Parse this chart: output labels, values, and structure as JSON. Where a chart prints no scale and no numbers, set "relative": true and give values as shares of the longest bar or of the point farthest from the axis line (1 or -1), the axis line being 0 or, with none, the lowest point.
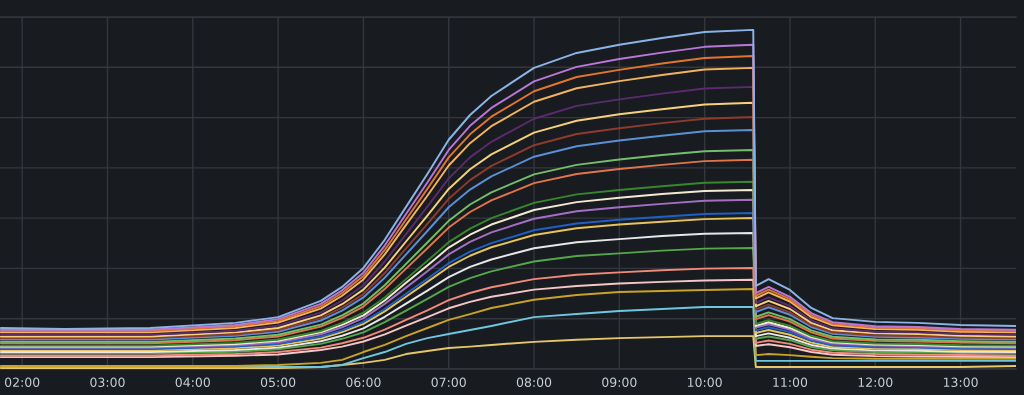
{
  "chart_data": {
    "type": "line",
    "relative": true,
    "grid": true,
    "x": [
      1.75,
      2.5,
      3.5,
      4.5,
      5,
      5.5,
      5.75,
      6,
      6.25,
      6.5,
      6.75,
      7,
      7.25,
      7.5,
      8,
      8.5,
      9,
      9.5,
      10,
      10.57,
      10.6,
      10.75,
      11,
      11.25,
      11.5,
      12,
      12.5,
      13,
      13.65
    ],
    "xlim": [
      1.74,
      13.65
    ],
    "xticks": [
      {
        "value": 2,
        "label": "02:00"
      },
      {
        "value": 3,
        "label": "03:00"
      },
      {
        "value": 4,
        "label": "04:00"
      },
      {
        "value": 5,
        "label": "05:00"
      },
      {
        "value": 6,
        "label": "06:00"
      },
      {
        "value": 7,
        "label": "07:00"
      },
      {
        "value": 8,
        "label": "08:00"
      },
      {
        "value": 9,
        "label": "09:00"
      },
      {
        "value": 10,
        "label": "10:00"
      },
      {
        "value": 11,
        "label": "11:00"
      },
      {
        "value": 12,
        "label": "12:00"
      },
      {
        "value": 13,
        "label": "13:00"
      }
    ],
    "series": [
      {
        "color": "#8ab4e8",
        "values": [
          0.121,
          0.118,
          0.121,
          0.136,
          0.153,
          0.201,
          0.242,
          0.298,
          0.381,
          0.478,
          0.575,
          0.676,
          0.749,
          0.805,
          0.888,
          0.932,
          0.956,
          0.976,
          0.994,
          1.0,
          0.245,
          0.265,
          0.233,
          0.18,
          0.15,
          0.139,
          0.136,
          0.13,
          0.127
        ]
      },
      {
        "color": "#b877d9",
        "values": [
          0.116,
          0.116,
          0.116,
          0.13,
          0.147,
          0.192,
          0.232,
          0.284,
          0.364,
          0.457,
          0.55,
          0.646,
          0.717,
          0.77,
          0.848,
          0.891,
          0.914,
          0.933,
          0.95,
          0.956,
          0.224,
          0.242,
          0.213,
          0.165,
          0.138,
          0.126,
          0.124,
          0.118,
          0.116
        ]
      },
      {
        "color": "#e0752d",
        "values": [
          0.112,
          0.112,
          0.112,
          0.126,
          0.142,
          0.185,
          0.224,
          0.274,
          0.351,
          0.441,
          0.531,
          0.624,
          0.692,
          0.744,
          0.819,
          0.861,
          0.882,
          0.901,
          0.917,
          0.923,
          0.216,
          0.234,
          0.206,
          0.159,
          0.133,
          0.122,
          0.12,
          0.114,
          0.112
        ]
      },
      {
        "color": "#f2b35e",
        "values": [
          0.108,
          0.108,
          0.108,
          0.121,
          0.137,
          0.178,
          0.216,
          0.264,
          0.338,
          0.425,
          0.511,
          0.6,
          0.666,
          0.716,
          0.788,
          0.828,
          0.849,
          0.867,
          0.883,
          0.888,
          0.208,
          0.226,
          0.199,
          0.153,
          0.129,
          0.118,
          0.116,
          0.11,
          0.108
        ]
      },
      {
        "color": "#5c2a6e",
        "values": [
          0.101,
          0.101,
          0.101,
          0.113,
          0.128,
          0.167,
          0.202,
          0.247,
          0.317,
          0.398,
          0.479,
          0.562,
          0.624,
          0.67,
          0.738,
          0.776,
          0.795,
          0.812,
          0.827,
          0.832,
          0.195,
          0.211,
          0.186,
          0.143,
          0.12,
          0.11,
          0.108,
          0.103,
          0.101
        ]
      },
      {
        "color": "#f5d17a",
        "values": [
          0.096,
          0.096,
          0.096,
          0.108,
          0.121,
          0.158,
          0.191,
          0.234,
          0.299,
          0.376,
          0.452,
          0.531,
          0.589,
          0.633,
          0.697,
          0.732,
          0.751,
          0.766,
          0.78,
          0.785,
          0.185,
          0.201,
          0.177,
          0.136,
          0.114,
          0.105,
          0.103,
          0.098,
          0.096
        ]
      },
      {
        "color": "#8e3b2e",
        "values": [
          0.091,
          0.091,
          0.091,
          0.102,
          0.115,
          0.15,
          0.181,
          0.221,
          0.283,
          0.356,
          0.428,
          0.502,
          0.557,
          0.599,
          0.66,
          0.693,
          0.71,
          0.725,
          0.738,
          0.743,
          0.176,
          0.19,
          0.167,
          0.129,
          0.108,
          0.099,
          0.097,
          0.093,
          0.091
        ]
      },
      {
        "color": "#5b8fd6",
        "values": [
          0.087,
          0.087,
          0.087,
          0.098,
          0.11,
          0.143,
          0.172,
          0.211,
          0.269,
          0.338,
          0.407,
          0.477,
          0.529,
          0.568,
          0.626,
          0.657,
          0.674,
          0.688,
          0.701,
          0.705,
          0.168,
          0.182,
          0.16,
          0.124,
          0.104,
          0.095,
          0.093,
          0.089,
          0.087
        ]
      },
      {
        "color": "#73bf69",
        "values": [
          0.08,
          0.08,
          0.08,
          0.09,
          0.101,
          0.131,
          0.158,
          0.193,
          0.247,
          0.31,
          0.373,
          0.437,
          0.485,
          0.521,
          0.574,
          0.602,
          0.618,
          0.631,
          0.642,
          0.646,
          0.154,
          0.167,
          0.147,
          0.114,
          0.095,
          0.087,
          0.086,
          0.082,
          0.08
        ]
      },
      {
        "color": "#e0754a",
        "values": [
          0.076,
          0.076,
          0.076,
          0.085,
          0.096,
          0.125,
          0.151,
          0.184,
          0.236,
          0.296,
          0.356,
          0.417,
          0.463,
          0.497,
          0.548,
          0.575,
          0.59,
          0.602,
          0.613,
          0.617,
          0.147,
          0.159,
          0.14,
          0.108,
          0.09,
          0.083,
          0.081,
          0.078,
          0.076
        ]
      },
      {
        "color": "#37872d",
        "values": [
          0.069,
          0.069,
          0.069,
          0.077,
          0.087,
          0.112,
          0.136,
          0.166,
          0.211,
          0.265,
          0.319,
          0.374,
          0.414,
          0.445,
          0.49,
          0.515,
          0.528,
          0.539,
          0.549,
          0.552,
          0.133,
          0.144,
          0.127,
          0.098,
          0.082,
          0.075,
          0.074,
          0.07,
          0.069
        ]
      },
      {
        "color": "#f4ead2",
        "values": [
          0.066,
          0.066,
          0.066,
          0.074,
          0.083,
          0.108,
          0.13,
          0.158,
          0.202,
          0.254,
          0.305,
          0.358,
          0.396,
          0.426,
          0.469,
          0.492,
          0.505,
          0.516,
          0.525,
          0.528,
          0.127,
          0.138,
          0.121,
          0.094,
          0.079,
          0.072,
          0.071,
          0.067,
          0.066
        ]
      },
      {
        "color": "#a36fc4",
        "values": [
          0.063,
          0.063,
          0.063,
          0.07,
          0.079,
          0.102,
          0.123,
          0.15,
          0.192,
          0.24,
          0.288,
          0.338,
          0.375,
          0.403,
          0.443,
          0.465,
          0.477,
          0.487,
          0.496,
          0.499,
          0.122,
          0.132,
          0.116,
          0.089,
          0.075,
          0.069,
          0.067,
          0.064,
          0.063
        ]
      },
      {
        "color": "#1f60c4",
        "values": [
          0.059,
          0.059,
          0.059,
          0.066,
          0.074,
          0.095,
          0.114,
          0.139,
          0.177,
          0.222,
          0.266,
          0.312,
          0.346,
          0.371,
          0.409,
          0.429,
          0.44,
          0.449,
          0.457,
          0.46,
          0.114,
          0.123,
          0.109,
          0.084,
          0.07,
          0.064,
          0.063,
          0.06,
          0.059
        ]
      },
      {
        "color": "#e6c35c",
        "values": [
          0.055,
          0.055,
          0.055,
          0.062,
          0.069,
          0.09,
          0.109,
          0.133,
          0.17,
          0.213,
          0.257,
          0.301,
          0.334,
          0.359,
          0.395,
          0.415,
          0.426,
          0.434,
          0.442,
          0.445,
          0.106,
          0.115,
          0.101,
          0.078,
          0.065,
          0.06,
          0.059,
          0.056,
          0.055
        ]
      },
      {
        "color": "#e8e8e8",
        "values": [
          0.05,
          0.05,
          0.05,
          0.056,
          0.063,
          0.082,
          0.098,
          0.12,
          0.154,
          0.193,
          0.231,
          0.271,
          0.301,
          0.323,
          0.356,
          0.374,
          0.383,
          0.392,
          0.399,
          0.401,
          0.097,
          0.105,
          0.092,
          0.071,
          0.06,
          0.055,
          0.054,
          0.051,
          0.05
        ]
      },
      {
        "color": "#56a64b",
        "values": [
          0.046,
          0.046,
          0.046,
          0.051,
          0.058,
          0.074,
          0.089,
          0.108,
          0.138,
          0.172,
          0.207,
          0.242,
          0.268,
          0.288,
          0.317,
          0.333,
          0.341,
          0.349,
          0.355,
          0.357,
          0.089,
          0.096,
          0.085,
          0.065,
          0.055,
          0.05,
          0.049,
          0.047,
          0.046
        ]
      },
      {
        "color": "#f08a7a",
        "values": [
          0.04,
          0.04,
          0.04,
          0.044,
          0.05,
          0.063,
          0.076,
          0.092,
          0.116,
          0.145,
          0.173,
          0.203,
          0.224,
          0.241,
          0.265,
          0.278,
          0.285,
          0.291,
          0.296,
          0.298,
          0.077,
          0.084,
          0.074,
          0.057,
          0.048,
          0.044,
          0.043,
          0.041,
          0.04
        ]
      },
      {
        "color": "#f5c6c6",
        "values": [
          0.035,
          0.035,
          0.035,
          0.039,
          0.043,
          0.056,
          0.066,
          0.081,
          0.102,
          0.128,
          0.153,
          0.179,
          0.198,
          0.213,
          0.234,
          0.245,
          0.252,
          0.257,
          0.261,
          0.263,
          0.068,
          0.073,
          0.064,
          0.05,
          0.042,
          0.038,
          0.037,
          0.036,
          0.035
        ]
      },
      {
        "color": "#c9a227",
        "values": [
          0.009,
          0.009,
          0.009,
          0.009,
          0.012,
          0.018,
          0.027,
          0.05,
          0.071,
          0.097,
          0.121,
          0.145,
          0.162,
          0.18,
          0.204,
          0.218,
          0.227,
          0.23,
          0.233,
          0.236,
          0.041,
          0.044,
          0.041,
          0.036,
          0.032,
          0.03,
          0.03,
          0.03,
          0.03
        ]
      },
      {
        "color": "#6ec6e0",
        "values": [
          0.006,
          0.006,
          0.006,
          0.006,
          0.006,
          0.006,
          0.012,
          0.032,
          0.05,
          0.074,
          0.091,
          0.103,
          0.115,
          0.127,
          0.153,
          0.162,
          0.171,
          0.177,
          0.183,
          0.183,
          0.024,
          0.024,
          0.024,
          0.024,
          0.024,
          0.024,
          0.024,
          0.024,
          0.024
        ]
      },
      {
        "color": "#e5c76b",
        "values": [
          0.003,
          0.003,
          0.003,
          0.003,
          0.003,
          0.006,
          0.012,
          0.018,
          0.027,
          0.044,
          0.053,
          0.062,
          0.066,
          0.071,
          0.08,
          0.086,
          0.091,
          0.094,
          0.097,
          0.097,
          0.006,
          0.006,
          0.006,
          0.006,
          0.006,
          0.006,
          0.006,
          0.006,
          0.009
        ]
      }
    ]
  }
}
